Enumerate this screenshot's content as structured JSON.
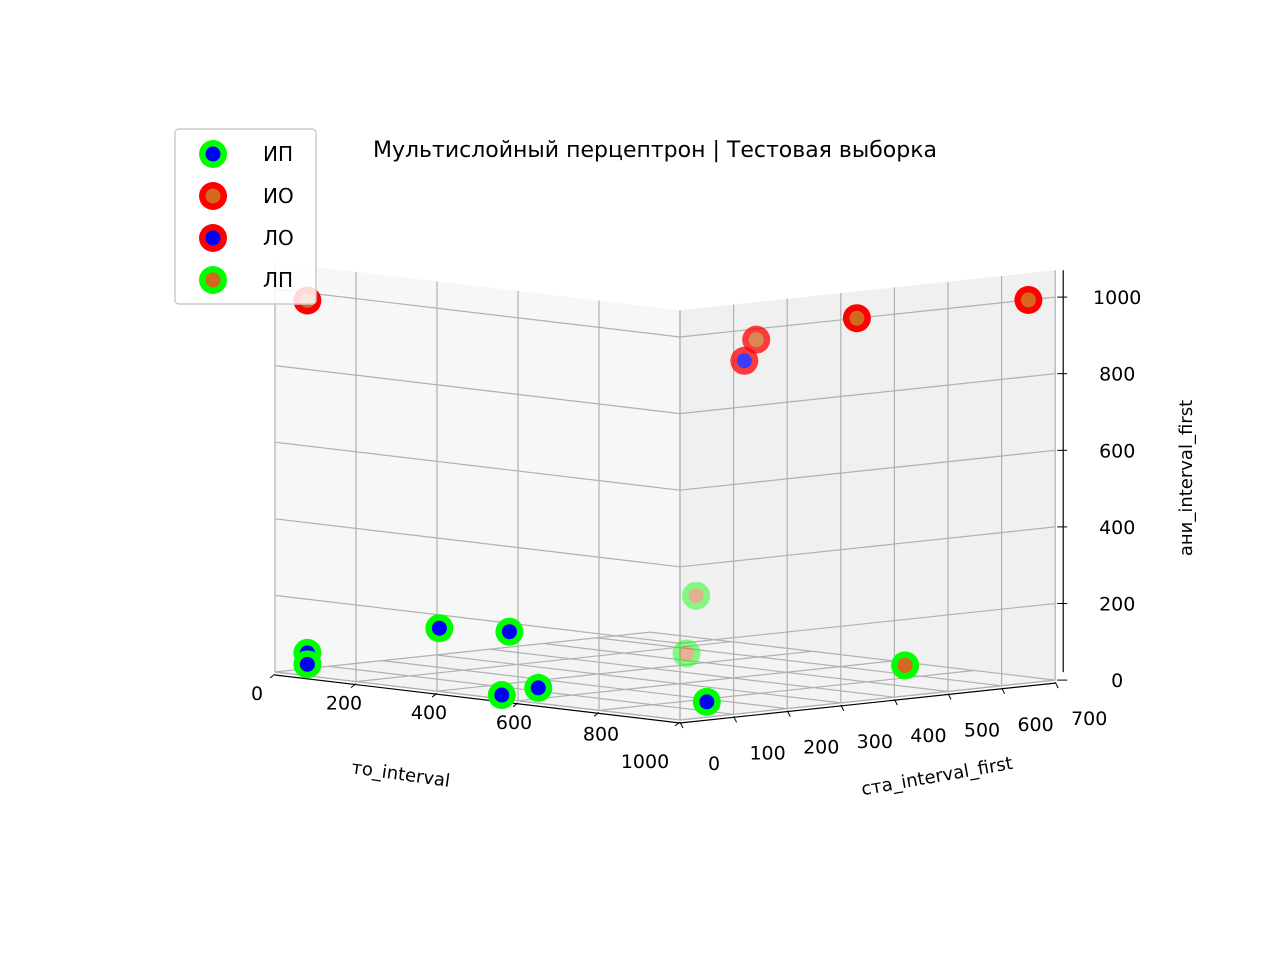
{
  "chart_data": {
    "type": "scatter",
    "projection": "3d",
    "title": "Мультислойный перцептрон | Тестовая выборка",
    "xlabel": "то_interval",
    "ylabel": "ста_interval_first",
    "zlabel": "ани_interval_first",
    "xlim": [
      0,
      1000
    ],
    "ylim": [
      0,
      700
    ],
    "zlim": [
      0,
      1000
    ],
    "x_ticks": [
      "0",
      "200",
      "400",
      "600",
      "800",
      "1000"
    ],
    "y_ticks": [
      "0",
      "100",
      "200",
      "300",
      "400",
      "500",
      "600",
      "700"
    ],
    "z_ticks": [
      "0",
      "200",
      "400",
      "600",
      "800",
      "1000"
    ],
    "grid": true,
    "legend_position": "top-left",
    "series": [
      {
        "name": "ИП",
        "edge_color": "#00ff00",
        "face_color": "#0000ff",
        "points": [
          {
            "x": 80,
            "y": 0,
            "z": 60
          },
          {
            "x": 80,
            "y": 0,
            "z": 30
          },
          {
            "x": 560,
            "y": 0,
            "z": 10
          },
          {
            "x": 300,
            "y": 80,
            "z": 140
          },
          {
            "x": 650,
            "y": 0,
            "z": 40
          },
          {
            "x": 420,
            "y": 120,
            "z": 140
          },
          {
            "x": 1000,
            "y": 50,
            "z": 40
          }
        ]
      },
      {
        "name": "ИО",
        "edge_color": "#ff0000",
        "face_color": "#d2691e",
        "points": [
          {
            "x": 80,
            "y": 0,
            "z": 980
          },
          {
            "x": 950,
            "y": 180,
            "z": 960
          },
          {
            "x": 1000,
            "y": 330,
            "z": 1000
          },
          {
            "x": 1000,
            "y": 650,
            "z": 1000
          }
        ]
      },
      {
        "name": "ЛО",
        "edge_color": "#ff0000",
        "face_color": "#0000ff",
        "points": [
          {
            "x": 1000,
            "y": 120,
            "z": 920
          }
        ]
      },
      {
        "name": "ЛП",
        "edge_color": "#00ff00",
        "face_color": "#d2691e",
        "points": [
          {
            "x": 1000,
            "y": 30,
            "z": 320
          },
          {
            "x": 950,
            "y": 50,
            "z": 160
          },
          {
            "x": 1000,
            "y": 420,
            "z": 80
          }
        ]
      }
    ]
  }
}
